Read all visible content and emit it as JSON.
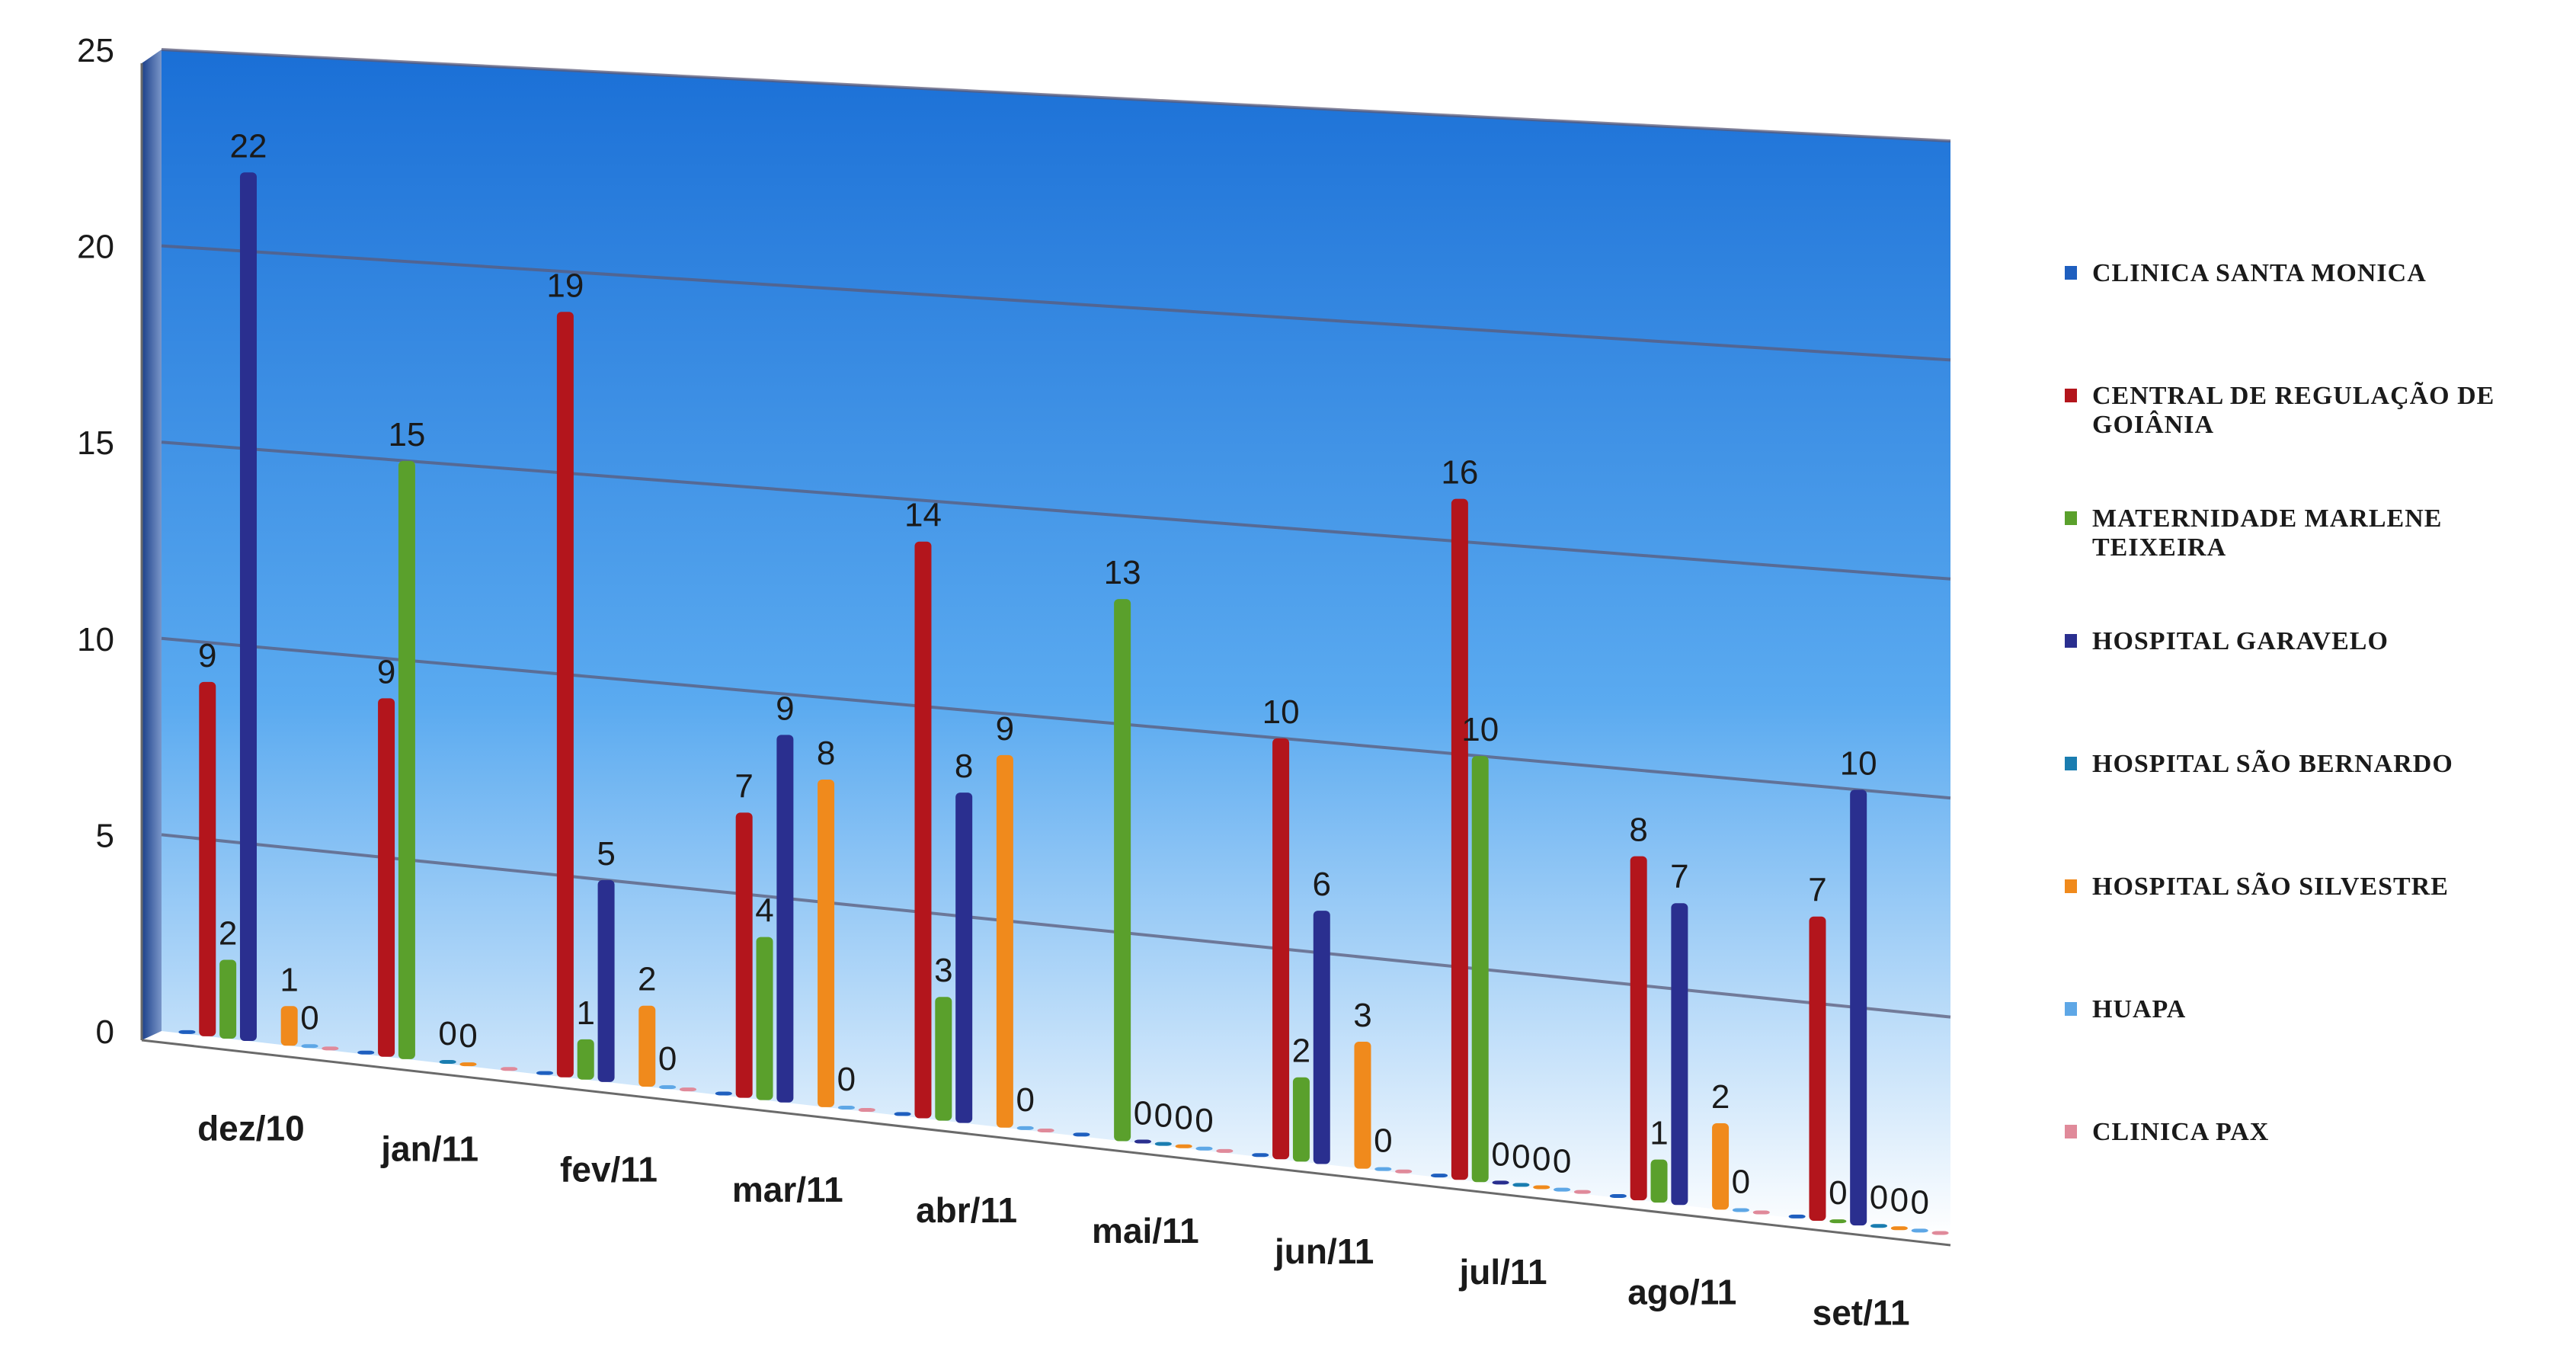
{
  "chart_data": {
    "type": "bar",
    "categories": [
      "dez/10",
      "jan/11",
      "fev/11",
      "mar/11",
      "abr/11",
      "mai/11",
      "jun/11",
      "jul/11",
      "ago/11",
      "set/11"
    ],
    "ylim": [
      0,
      25
    ],
    "yticks": [
      0,
      5,
      10,
      15,
      20,
      25
    ],
    "grid": true,
    "legend_position": "right",
    "series": [
      {
        "name": "CLINICA SANTA MONICA",
        "color": "#1f5fbf",
        "values": [
          0,
          0,
          0,
          0,
          0,
          0,
          0,
          0,
          0,
          0
        ],
        "show_labels": false
      },
      {
        "name": "CENTRAL DE REGULAÇÃO DE GOIÂNIA",
        "color": "#b3151c",
        "values": [
          9,
          9,
          19,
          7,
          14,
          null,
          10,
          16,
          8,
          7
        ],
        "show_labels": true
      },
      {
        "name": "MATERNIDADE MARLENE TEIXEIRA",
        "color": "#5aa02c",
        "values": [
          2,
          15,
          1,
          4,
          3,
          13,
          2,
          10,
          1,
          0
        ],
        "show_labels": true
      },
      {
        "name": "HOSPITAL GARAVELO",
        "color": "#2a2f8f",
        "values": [
          22,
          null,
          5,
          9,
          8,
          0,
          6,
          0,
          7,
          10
        ],
        "show_labels": true
      },
      {
        "name": "HOSPITAL SÃO BERNARDO",
        "color": "#1a7db0",
        "values": [
          null,
          0,
          null,
          null,
          null,
          0,
          null,
          0,
          null,
          0
        ],
        "show_labels": true
      },
      {
        "name": "HOSPITAL SÃO SILVESTRE",
        "color": "#f08a1c",
        "values": [
          1,
          0,
          2,
          8,
          9,
          0,
          3,
          0,
          2,
          0
        ],
        "show_labels": true
      },
      {
        "name": "HUAPA",
        "color": "#5ea7e6",
        "values": [
          0,
          null,
          0,
          0,
          0,
          0,
          0,
          0,
          0,
          0
        ],
        "show_labels": true
      },
      {
        "name": "CLINICA PAX",
        "color": "#e08a9a",
        "values": [
          0,
          0,
          0,
          0,
          0,
          0,
          0,
          0,
          0,
          0
        ],
        "show_labels": false
      }
    ]
  },
  "legend": {
    "items": [
      {
        "lines": [
          "CLINICA SANTA MONICA"
        ],
        "color": "#1f5fbf"
      },
      {
        "lines": [
          "CENTRAL DE REGULAÇÃO DE",
          "GOIÂNIA"
        ],
        "color": "#b3151c"
      },
      {
        "lines": [
          "MATERNIDADE MARLENE",
          "TEIXEIRA"
        ],
        "color": "#5aa02c"
      },
      {
        "lines": [
          "HOSPITAL GARAVELO"
        ],
        "color": "#2a2f8f"
      },
      {
        "lines": [
          "HOSPITAL SÃO BERNARDO"
        ],
        "color": "#1a7db0"
      },
      {
        "lines": [
          "HOSPITAL SÃO SILVESTRE"
        ],
        "color": "#f08a1c"
      },
      {
        "lines": [
          "HUAPA"
        ],
        "color": "#5ea7e6"
      },
      {
        "lines": [
          "CLINICA PAX"
        ],
        "color": "#e08a9a"
      }
    ]
  }
}
